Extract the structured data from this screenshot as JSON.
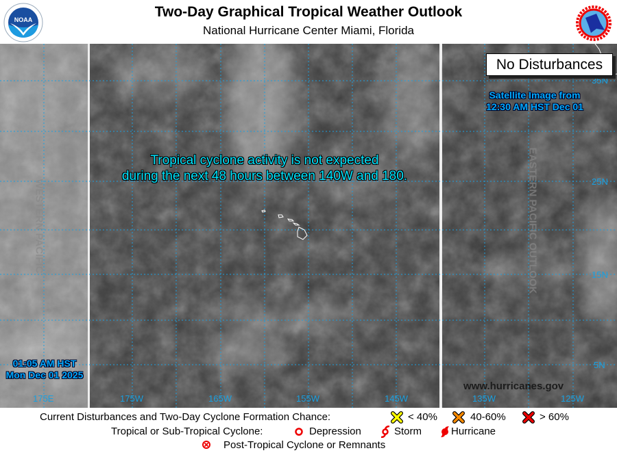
{
  "header": {
    "title": "Two-Day Graphical Tropical Weather Outlook",
    "subtitle": "National Hurricane Center  Miami, Florida",
    "left_logo": "NOAA",
    "right_logo": "NATIONAL WEATHER SERVICE"
  },
  "map": {
    "status_box": "No Disturbances",
    "outlook_text_line1": "Tropical cyclone activity is not expected",
    "outlook_text_line2": "during the next 48 hours between 140W and 180.",
    "satellite_line1": "Satellite Image from",
    "satellite_line2": "12:30 AM HST Dec 01",
    "issued_time": "01:05 AM HST",
    "issued_date": "Mon Dec 01 2025",
    "western_label": "WESTERN PACIFIC",
    "eastern_label": "EASTERN PACIFIC OUTLOOK",
    "website": "www.hurricanes.gov",
    "lon_labels": [
      "175E",
      "175W",
      "165W",
      "155W",
      "145W",
      "135W",
      "125W"
    ],
    "lat_labels": [
      "35N",
      "25N",
      "15N",
      "5N"
    ],
    "grid_color": "#1aa0e0"
  },
  "legend": {
    "formation_label": "Current Disturbances and Two-Day Cyclone Formation Chance:",
    "low": {
      "label": "< 40%",
      "color": "#ffff00"
    },
    "mid": {
      "label": "40-60%",
      "color": "#ff8c00"
    },
    "high": {
      "label": "> 60%",
      "color": "#ee0000"
    },
    "cyclone_label": "Tropical or Sub-Tropical Cyclone:",
    "depression": "Depression",
    "storm": "Storm",
    "hurricane": "Hurricane",
    "post_tropical": "Post-Tropical Cyclone or Remnants"
  }
}
